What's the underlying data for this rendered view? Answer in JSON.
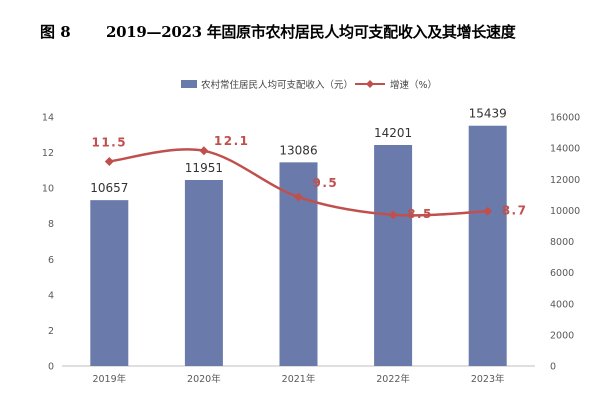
{
  "figure": {
    "number": "图 8",
    "title": "2019—2023 年固原市农村居民人均可支配收入及其增长速度"
  },
  "chart_data": {
    "type": "bar",
    "categories": [
      "2019年",
      "2020年",
      "2021年",
      "2022年",
      "2023年"
    ],
    "series": [
      {
        "name": "农村常住居民人均可支配收入（元）",
        "type": "bar",
        "axis": "right",
        "color": "#6a7bab",
        "values": [
          10657,
          11951,
          13086,
          14201,
          15439
        ],
        "labels": [
          "10657",
          "11951",
          "13086",
          "14201",
          "15439"
        ]
      },
      {
        "name": "增速（%）",
        "type": "line",
        "axis": "left",
        "color": "#c0504d",
        "values": [
          11.5,
          12.1,
          9.5,
          8.5,
          8.7
        ],
        "labels": [
          "11.5",
          "12.1",
          "9.5",
          "8.5",
          "8.7"
        ]
      }
    ],
    "left_axis": {
      "ylim": [
        0,
        14
      ],
      "ticks": [
        "0",
        "2",
        "4",
        "6",
        "8",
        "10",
        "12",
        "14"
      ]
    },
    "right_axis": {
      "ylim": [
        0,
        16000
      ],
      "ticks": [
        "0",
        "2000",
        "4000",
        "6000",
        "8000",
        "10000",
        "12000",
        "14000",
        "16000"
      ]
    },
    "legend_position": "top-center",
    "grid": false
  }
}
